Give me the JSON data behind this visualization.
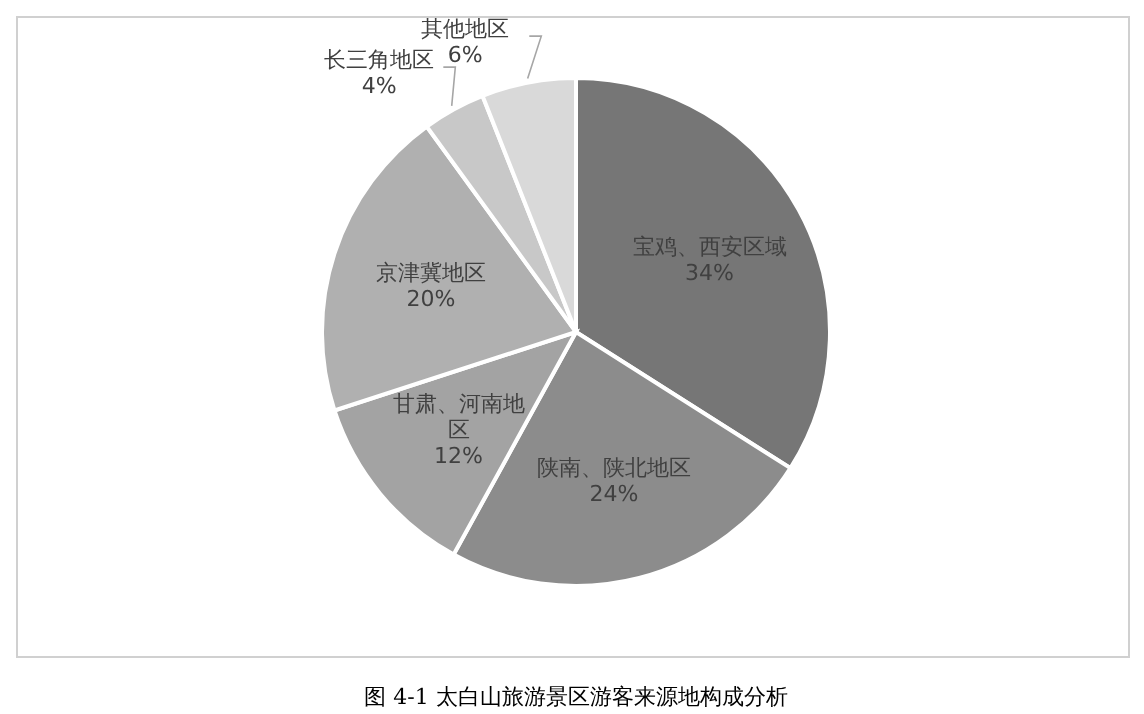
{
  "chart_data": {
    "type": "pie",
    "categories": [
      "宝鸡、西安区域",
      "陕南、陕北地区",
      "甘肃、河南地区",
      "京津冀地区",
      "长三角地区",
      "其他地区"
    ],
    "values": [
      34,
      24,
      12,
      20,
      4,
      6
    ],
    "value_labels": [
      "34%",
      "24%",
      "12%",
      "20%",
      "4%",
      "6%"
    ],
    "colors": [
      "#767676",
      "#8c8c8c",
      "#a3a3a3",
      "#b0b0b0",
      "#c8c8c8",
      "#d9d9d9"
    ],
    "annotations": [
      "图 4-1 太白山旅游景区游客来源地构成分析"
    ]
  }
}
